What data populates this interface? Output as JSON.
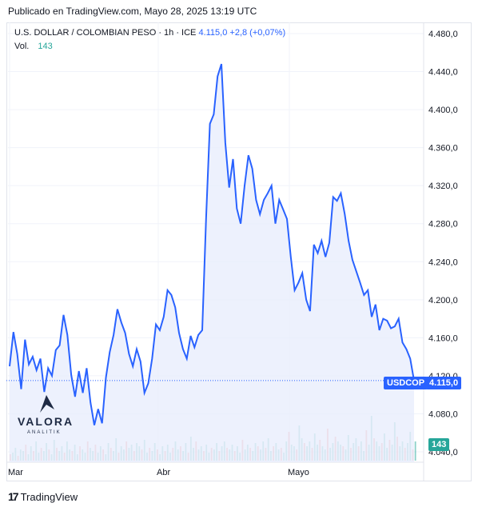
{
  "header": {
    "published": "Publicado en TradingView.com, Mayo 28, 2025 13:19 UTC"
  },
  "legend": {
    "symbol": "U.S. DOLLAR / COLOMBIAN PESO · 1h · ICE",
    "last": "4.115,0",
    "change": "+2,8 (+0,07%)",
    "vol_label": "Vol.",
    "vol_value": "143"
  },
  "badges": {
    "ticker": "USDCOP",
    "price": "4.115,0",
    "volume": "143"
  },
  "logo": {
    "name": "VALORA",
    "sub": "ANALITIK"
  },
  "footer": {
    "brand": "TradingView"
  },
  "colors": {
    "line": "#2962ff",
    "up": "#26a69a",
    "down": "#ef5350",
    "fill": "#e3eafc"
  },
  "chart_data": {
    "type": "area",
    "y_ticks": [
      "4.480,0",
      "4.440,0",
      "4.400,0",
      "4.360,0",
      "4.320,0",
      "4.280,0",
      "4.240,0",
      "4.200,0",
      "4.160,0",
      "4.120,0",
      "4.080,0",
      "4.040,0"
    ],
    "ylim": [
      4040,
      4480
    ],
    "x_ticks": [
      {
        "label": "Mar",
        "x": 0
      },
      {
        "label": "Abr",
        "x": 22
      },
      {
        "label": "Mayo",
        "x": 43
      }
    ],
    "xlim": [
      0,
      62
    ],
    "series": [
      {
        "values": [
          [
            0,
            4130
          ],
          [
            0.5,
            4166
          ],
          [
            1,
            4143
          ],
          [
            1.5,
            4106
          ],
          [
            2,
            4158
          ],
          [
            2.5,
            4132
          ],
          [
            3,
            4140
          ],
          [
            3.5,
            4126
          ],
          [
            4,
            4138
          ],
          [
            4.5,
            4103
          ],
          [
            5,
            4128
          ],
          [
            5.5,
            4120
          ],
          [
            6,
            4147
          ],
          [
            6.5,
            4152
          ],
          [
            7,
            4184
          ],
          [
            7.5,
            4163
          ],
          [
            8,
            4121
          ],
          [
            8.5,
            4098
          ],
          [
            9,
            4125
          ],
          [
            9.5,
            4102
          ],
          [
            10,
            4128
          ],
          [
            10.5,
            4092
          ],
          [
            11,
            4068
          ],
          [
            11.5,
            4085
          ],
          [
            12,
            4070
          ],
          [
            12.5,
            4118
          ],
          [
            13,
            4145
          ],
          [
            13.5,
            4163
          ],
          [
            14,
            4190
          ],
          [
            14.5,
            4176
          ],
          [
            15,
            4165
          ],
          [
            15.5,
            4143
          ],
          [
            16,
            4130
          ],
          [
            16.5,
            4148
          ],
          [
            17,
            4135
          ],
          [
            17.5,
            4102
          ],
          [
            18,
            4112
          ],
          [
            18.5,
            4138
          ],
          [
            19,
            4174
          ],
          [
            19.5,
            4168
          ],
          [
            20,
            4182
          ],
          [
            20.5,
            4210
          ],
          [
            21,
            4205
          ],
          [
            21.5,
            4192
          ],
          [
            22,
            4165
          ],
          [
            22.5,
            4148
          ],
          [
            23,
            4138
          ],
          [
            23.5,
            4162
          ],
          [
            24,
            4150
          ],
          [
            24.5,
            4163
          ],
          [
            25,
            4168
          ],
          [
            25.5,
            4285
          ],
          [
            26,
            4385
          ],
          [
            26.5,
            4395
          ],
          [
            27,
            4435
          ],
          [
            27.5,
            4448
          ],
          [
            28,
            4365
          ],
          [
            28.5,
            4318
          ],
          [
            29,
            4348
          ],
          [
            29.5,
            4296
          ],
          [
            30,
            4280
          ],
          [
            30.5,
            4320
          ],
          [
            31,
            4352
          ],
          [
            31.5,
            4338
          ],
          [
            32,
            4305
          ],
          [
            32.5,
            4290
          ],
          [
            33,
            4305
          ],
          [
            33.5,
            4312
          ],
          [
            34,
            4320
          ],
          [
            34.5,
            4280
          ],
          [
            35,
            4305
          ],
          [
            35.5,
            4295
          ],
          [
            36,
            4285
          ],
          [
            36.5,
            4245
          ],
          [
            37,
            4210
          ],
          [
            37.5,
            4218
          ],
          [
            38,
            4228
          ],
          [
            38.5,
            4200
          ],
          [
            39,
            4188
          ],
          [
            39.5,
            4258
          ],
          [
            40,
            4249
          ],
          [
            40.5,
            4262
          ],
          [
            41,
            4245
          ],
          [
            41.5,
            4260
          ],
          [
            42,
            4308
          ],
          [
            42.5,
            4304
          ],
          [
            43,
            4312
          ],
          [
            43.5,
            4290
          ],
          [
            44,
            4262
          ],
          [
            44.5,
            4242
          ],
          [
            45,
            4230
          ],
          [
            45.5,
            4218
          ],
          [
            46,
            4205
          ],
          [
            46.5,
            4210
          ],
          [
            47,
            4182
          ],
          [
            47.5,
            4195
          ],
          [
            48,
            4168
          ],
          [
            48.5,
            4180
          ],
          [
            49,
            4178
          ],
          [
            49.5,
            4170
          ],
          [
            50,
            4172
          ],
          [
            50.5,
            4180
          ],
          [
            51,
            4155
          ],
          [
            51.5,
            4148
          ],
          [
            52,
            4138
          ],
          [
            52.5,
            4115
          ]
        ]
      }
    ],
    "volume": {
      "values": [
        20,
        25,
        40,
        15,
        35,
        30,
        50,
        20,
        45,
        30,
        60,
        25,
        40,
        30,
        55,
        35,
        20,
        65,
        40,
        30,
        45,
        25,
        60,
        35,
        30,
        50,
        20,
        45,
        35,
        25,
        60,
        40,
        30,
        50,
        25,
        45,
        35,
        20,
        55,
        40,
        30,
        70,
        25,
        45,
        35,
        60,
        40,
        50,
        30,
        55,
        45,
        35,
        65,
        25,
        40,
        30,
        55,
        35,
        20,
        45,
        30,
        50,
        25,
        40,
        60,
        35,
        45,
        30,
        55,
        25,
        75,
        40,
        60,
        35,
        45,
        30,
        50,
        25,
        40,
        35,
        55,
        30,
        45,
        60,
        40,
        35,
        50,
        30,
        45,
        25,
        65,
        35,
        50,
        40,
        30,
        55,
        45,
        35,
        60,
        40,
        70,
        30,
        45,
        55,
        35,
        40,
        25,
        60,
        90,
        50,
        45,
        35,
        110,
        70,
        55,
        45,
        60,
        40,
        85,
        50,
        65,
        45,
        35,
        100,
        40,
        55,
        75,
        60,
        50,
        45,
        35,
        80,
        40,
        55,
        70,
        45,
        60,
        30,
        95,
        50,
        140,
        70,
        60,
        45,
        55,
        85,
        40,
        65,
        50,
        120,
        75,
        45,
        60,
        40,
        55,
        90,
        35,
        60
      ],
      "last": 143
    }
  }
}
